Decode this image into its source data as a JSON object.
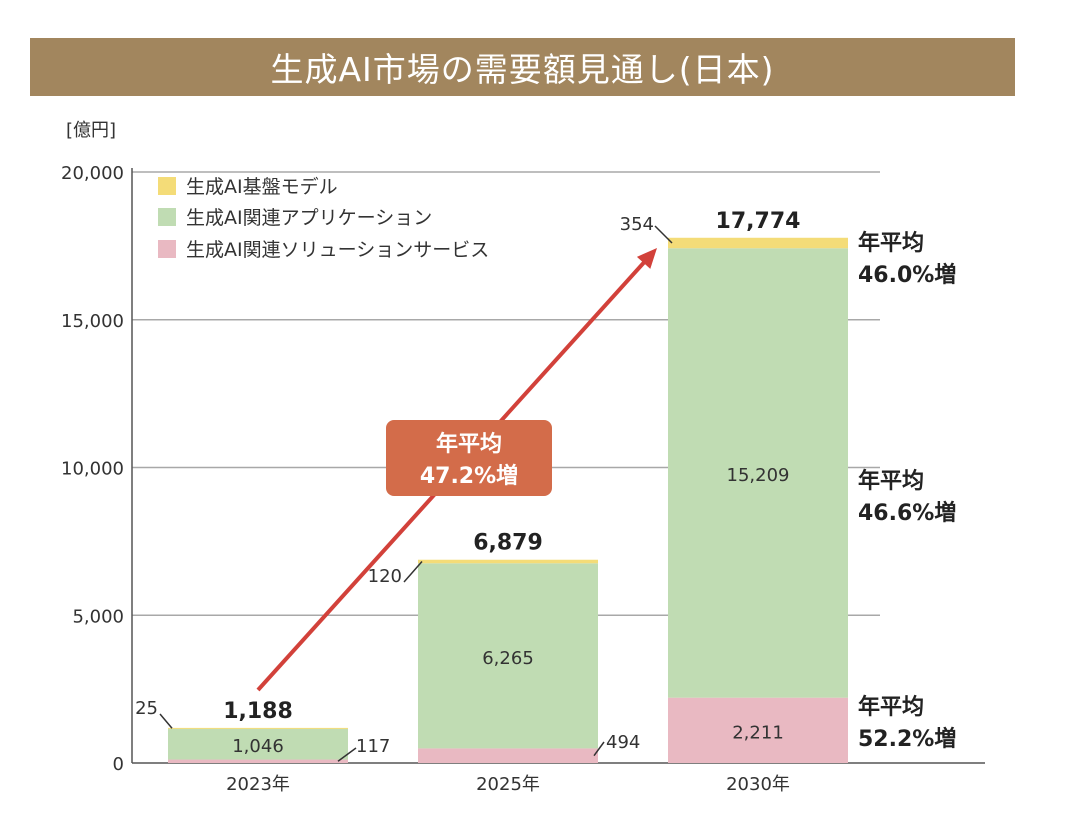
{
  "title": "生成AI市場の需要額見通し(日本)",
  "chart_data": {
    "type": "bar",
    "stacked": true,
    "categories": [
      "2023年",
      "2025年",
      "2030年"
    ],
    "series": [
      {
        "name": "生成AI関連ソリューションサービス",
        "values": [
          117,
          494,
          2211
        ],
        "labels": [
          "117",
          "494",
          "2,211"
        ],
        "color": "#e9b9c2"
      },
      {
        "name": "生成AI関連アプリケーション",
        "values": [
          1046,
          6265,
          15209
        ],
        "labels": [
          "1,046",
          "6,265",
          "15,209"
        ],
        "color": "#c0dcb3"
      },
      {
        "name": "生成AI基盤モデル",
        "values": [
          25,
          120,
          354
        ],
        "labels": [
          "25",
          "120",
          "354"
        ],
        "color": "#f4dc78"
      }
    ],
    "totals": [
      "1,188",
      "6,879",
      "17,774"
    ],
    "legend_order": [
      "生成AI基盤モデル",
      "生成AI関連アプリケーション",
      "生成AI関連ソリューションサービス"
    ],
    "ylabel": "[億円]",
    "ylim": [
      0,
      20000
    ],
    "yticks": [
      0,
      5000,
      10000,
      15000,
      20000
    ],
    "ytick_labels": [
      "0",
      "5,000",
      "10,000",
      "15,000",
      "20,000"
    ],
    "grid": true,
    "legend_position": "top-left",
    "overall_cagr": {
      "line1": "年平均",
      "line2": "47.2%増",
      "color": "#d36c4a"
    },
    "segment_cagr": [
      {
        "line1": "年平均",
        "line2": "46.0%増"
      },
      {
        "line1": "年平均",
        "line2": "46.6%増"
      },
      {
        "line1": "年平均",
        "line2": "52.2%増"
      }
    ],
    "arrow_color": "#d2413a"
  }
}
